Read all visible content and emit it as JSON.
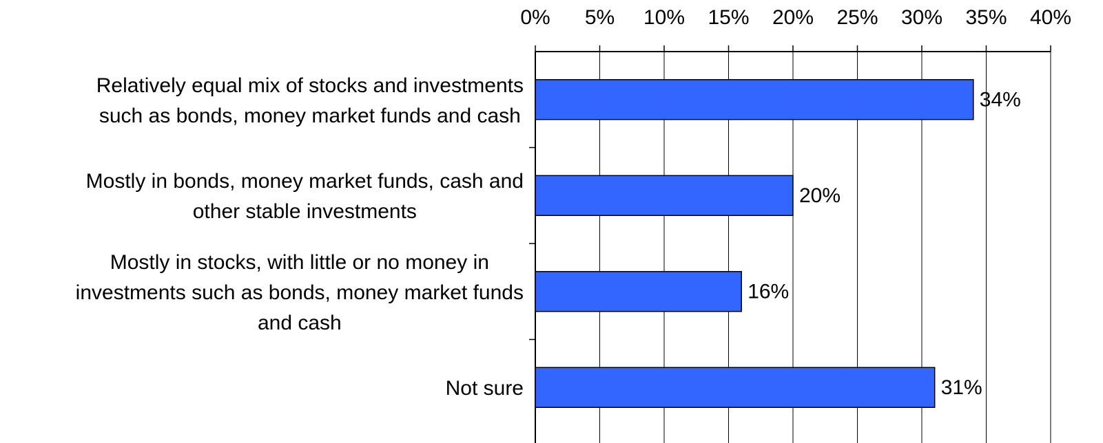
{
  "chart_data": {
    "type": "bar",
    "orientation": "horizontal",
    "categories": [
      "Relatively equal mix of stocks and investments\nsuch as bonds, money market funds and cash",
      "Mostly in bonds, money market funds, cash and\nother stable investments",
      "Mostly in stocks, with little or no money in\ninvestments such as bonds, money market funds\nand cash",
      "Not sure"
    ],
    "values": [
      34,
      20,
      16,
      31
    ],
    "value_labels": [
      "34%",
      "20%",
      "16%",
      "31%"
    ],
    "color": "#3366ff",
    "xlim": [
      0,
      40
    ],
    "xticks": [
      {
        "value": 0,
        "label": "0%"
      },
      {
        "value": 5,
        "label": "5%"
      },
      {
        "value": 10,
        "label": "10%"
      },
      {
        "value": 15,
        "label": "15%"
      },
      {
        "value": 20,
        "label": "20%"
      },
      {
        "value": 25,
        "label": "25%"
      },
      {
        "value": 30,
        "label": "30%"
      },
      {
        "value": 35,
        "label": "35%"
      },
      {
        "value": 40,
        "label": "40%"
      }
    ],
    "grid": true
  }
}
